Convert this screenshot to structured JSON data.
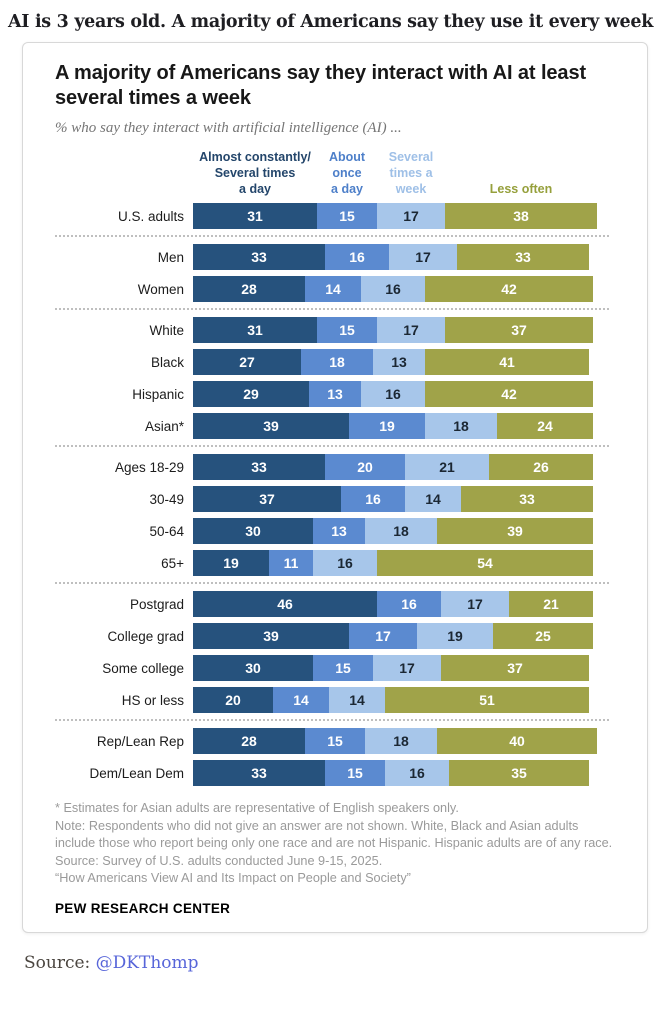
{
  "page": {
    "headline": "AI is 3 years old. A majority of Americans say they use it every week",
    "footer": {
      "label": "Source:",
      "link_text": "@DKThomp"
    }
  },
  "chart_data": {
    "type": "bar",
    "stacked": true,
    "orientation": "horizontal",
    "unit": "%",
    "xlim": [
      0,
      100
    ],
    "title": "A majority of Americans say they interact with AI at least several times a week",
    "subtitle": "% who say they interact with artificial intelligence (AI) ...",
    "series_names": [
      "Almost constantly/Several times a day",
      "About once a day",
      "Several times a week",
      "Less often"
    ],
    "series_colors": [
      "#26527d",
      "#5b8ad0",
      "#a7c6ea",
      "#a0a349"
    ],
    "value_text_colors": [
      "#ffffff",
      "#ffffff",
      "#1b2733",
      "#ffffff"
    ],
    "column_headers": [
      {
        "lines": [
          "Almost constantly/",
          "Several times",
          "a day"
        ],
        "color": "#24466b"
      },
      {
        "lines": [
          "About",
          "once",
          "a day"
        ],
        "color": "#4d7fc9"
      },
      {
        "lines": [
          "Several",
          "times a",
          "week"
        ],
        "color": "#9fc0e7"
      },
      {
        "lines": [
          "Less often"
        ],
        "color": "#96a03c"
      }
    ],
    "groups": [
      {
        "rows": [
          {
            "label": "U.S. adults",
            "values": [
              31,
              15,
              17,
              38
            ]
          }
        ]
      },
      {
        "rows": [
          {
            "label": "Men",
            "values": [
              33,
              16,
              17,
              33
            ]
          },
          {
            "label": "Women",
            "values": [
              28,
              14,
              16,
              42
            ]
          }
        ]
      },
      {
        "rows": [
          {
            "label": "White",
            "values": [
              31,
              15,
              17,
              37
            ]
          },
          {
            "label": "Black",
            "values": [
              27,
              18,
              13,
              41
            ]
          },
          {
            "label": "Hispanic",
            "values": [
              29,
              13,
              16,
              42
            ]
          },
          {
            "label": "Asian*",
            "values": [
              39,
              19,
              18,
              24
            ]
          }
        ]
      },
      {
        "rows": [
          {
            "label": "Ages 18-29",
            "values": [
              33,
              20,
              21,
              26
            ]
          },
          {
            "label": "30-49",
            "values": [
              37,
              16,
              14,
              33
            ]
          },
          {
            "label": "50-64",
            "values": [
              30,
              13,
              18,
              39
            ]
          },
          {
            "label": "65+",
            "values": [
              19,
              11,
              16,
              54
            ]
          }
        ]
      },
      {
        "rows": [
          {
            "label": "Postgrad",
            "values": [
              46,
              16,
              17,
              21
            ]
          },
          {
            "label": "College grad",
            "values": [
              39,
              17,
              19,
              25
            ]
          },
          {
            "label": "Some college",
            "values": [
              30,
              15,
              17,
              37
            ]
          },
          {
            "label": "HS or less",
            "values": [
              20,
              14,
              14,
              51
            ]
          }
        ]
      },
      {
        "rows": [
          {
            "label": "Rep/Lean Rep",
            "values": [
              28,
              15,
              18,
              40
            ]
          },
          {
            "label": "Dem/Lean Dem",
            "values": [
              33,
              15,
              16,
              35
            ]
          }
        ]
      }
    ],
    "footnotes": [
      "* Estimates for Asian adults are representative of English speakers only.",
      "Note: Respondents who did not give an answer are not shown. White, Black and Asian adults include those who report being only one race and are not Hispanic. Hispanic adults are of any race.",
      "Source: Survey of U.S. adults conducted June 9-15, 2025.",
      "“How Americans View AI and Its Impact on People and Society”"
    ],
    "brand": "PEW RESEARCH CENTER"
  }
}
